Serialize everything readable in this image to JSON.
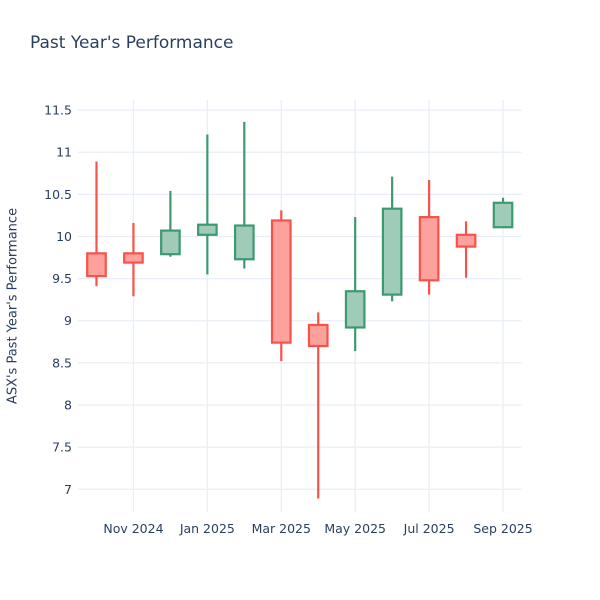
{
  "title": "Past Year's Performance",
  "chart_data": {
    "type": "candlestick",
    "title": "Past Year's Performance",
    "xlabel": "",
    "ylabel": "ASX's Past Year's Performance",
    "categories": [
      "Oct 2024",
      "Nov 2024",
      "Dec 2024",
      "Jan 2025",
      "Feb 2025",
      "Mar 2025",
      "Apr 2025",
      "May 2025",
      "Jun 2025",
      "Jul 2025",
      "Aug 2025",
      "Sep 2025"
    ],
    "open": [
      9.8,
      9.8,
      9.79,
      10.02,
      9.73,
      10.19,
      8.95,
      8.92,
      9.31,
      10.23,
      10.02,
      10.11
    ],
    "high": [
      10.89,
      10.16,
      10.54,
      11.21,
      11.36,
      10.31,
      9.1,
      10.23,
      10.71,
      10.67,
      10.18,
      10.46
    ],
    "low": [
      9.41,
      9.29,
      9.76,
      9.55,
      9.62,
      8.52,
      6.89,
      8.64,
      9.23,
      9.31,
      9.51,
      10.11
    ],
    "close": [
      9.53,
      9.69,
      10.07,
      10.14,
      10.13,
      8.74,
      8.7,
      9.35,
      10.33,
      9.48,
      9.88,
      10.4
    ],
    "x_tick_labels": [
      "Nov 2024",
      "Jan 2025",
      "Mar 2025",
      "May 2025",
      "Jul 2025",
      "Sep 2025"
    ],
    "x_tick_indices": [
      1,
      3,
      5,
      7,
      9,
      11
    ],
    "y_ticks": [
      7,
      7.5,
      8,
      8.5,
      9,
      9.5,
      10,
      10.5,
      11,
      11.5
    ],
    "y_range": [
      6.73,
      11.62
    ],
    "grid": true,
    "legend_position": "none",
    "colors": {
      "increasing_line": "#3D9970",
      "increasing_fill": "#9ECCB8",
      "decreasing_line": "#F8524A",
      "decreasing_fill": "#FCA19B",
      "grid": "#E9EEF6",
      "text": "#2A3F5F",
      "background": "#FFFFFF"
    }
  }
}
